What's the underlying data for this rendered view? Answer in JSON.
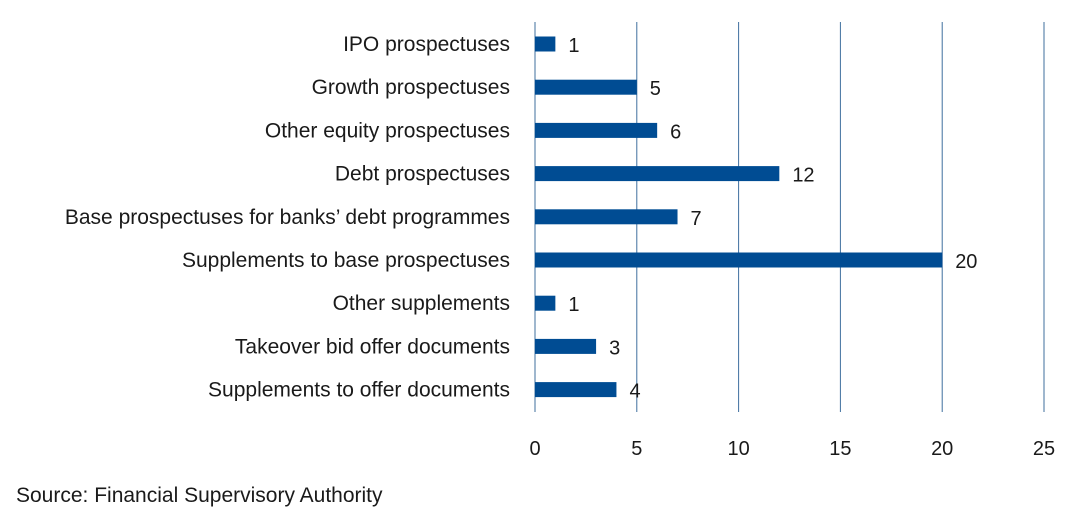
{
  "chart_data": {
    "type": "bar",
    "orientation": "horizontal",
    "categories": [
      "IPO prospectuses",
      "Growth prospectuses",
      "Other equity prospectuses",
      "Debt prospectuses",
      "Base prospectuses for banks’ debt programmes",
      "Supplements to base prospectuses",
      "Other supplements",
      "Takeover bid offer documents",
      "Supplements to offer documents"
    ],
    "values": [
      1,
      5,
      6,
      12,
      7,
      20,
      1,
      3,
      4
    ],
    "xlim": [
      0,
      25
    ],
    "xticks": [
      0,
      5,
      10,
      15,
      20,
      25
    ],
    "grid": "vertical",
    "bar_color": "#004c93",
    "grid_color": "#3f6f9e"
  },
  "source": "Source: Financial Supervisory Authority"
}
